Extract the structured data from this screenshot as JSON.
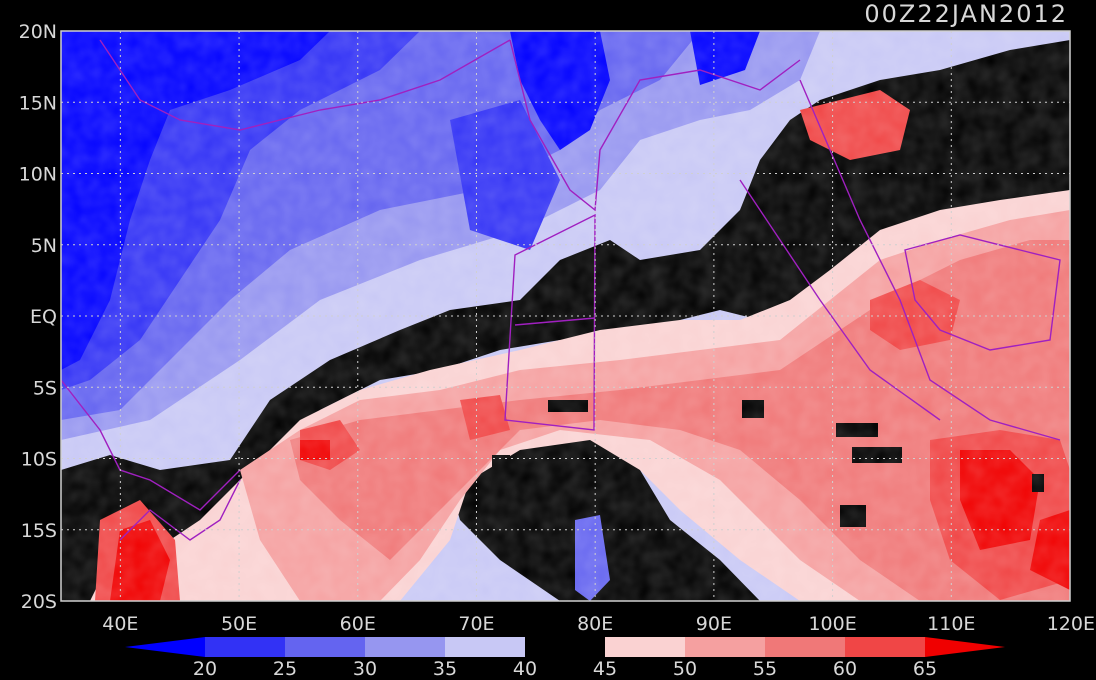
{
  "title": "00Z22JAN2012",
  "map": {
    "lon_min": 35,
    "lon_max": 120,
    "lat_min": -20,
    "lat_max": 20,
    "lat_ticks": [
      {
        "value": 20,
        "label": "20N"
      },
      {
        "value": 15,
        "label": "15N"
      },
      {
        "value": 10,
        "label": "10N"
      },
      {
        "value": 5,
        "label": "5N"
      },
      {
        "value": 0,
        "label": "EQ"
      },
      {
        "value": -5,
        "label": "5S"
      },
      {
        "value": -10,
        "label": "10S"
      },
      {
        "value": -15,
        "label": "15S"
      },
      {
        "value": -20,
        "label": "20S"
      }
    ],
    "lon_ticks": [
      {
        "value": 40,
        "label": "40E"
      },
      {
        "value": 50,
        "label": "50E"
      },
      {
        "value": 60,
        "label": "60E"
      },
      {
        "value": 70,
        "label": "70E"
      },
      {
        "value": 80,
        "label": "80E"
      },
      {
        "value": 90,
        "label": "90E"
      },
      {
        "value": 100,
        "label": "100E"
      },
      {
        "value": 110,
        "label": "110E"
      },
      {
        "value": 120,
        "label": "120E"
      }
    ],
    "grid": "dotted",
    "coastline_color": "#a020c0"
  },
  "colorbar": {
    "levels": [
      20,
      25,
      30,
      35,
      40,
      45,
      50,
      55,
      60,
      65
    ],
    "labels": [
      "20",
      "25",
      "30",
      "35",
      "40",
      "45",
      "50",
      "55",
      "60",
      "65"
    ],
    "colors": [
      "#0000ff",
      "#3232f5",
      "#6464f0",
      "#9696f0",
      "#c8c8f5",
      "#000000",
      "#fad2d2",
      "#f5a0a0",
      "#f07878",
      "#f04646",
      "#f00000"
    ]
  }
}
